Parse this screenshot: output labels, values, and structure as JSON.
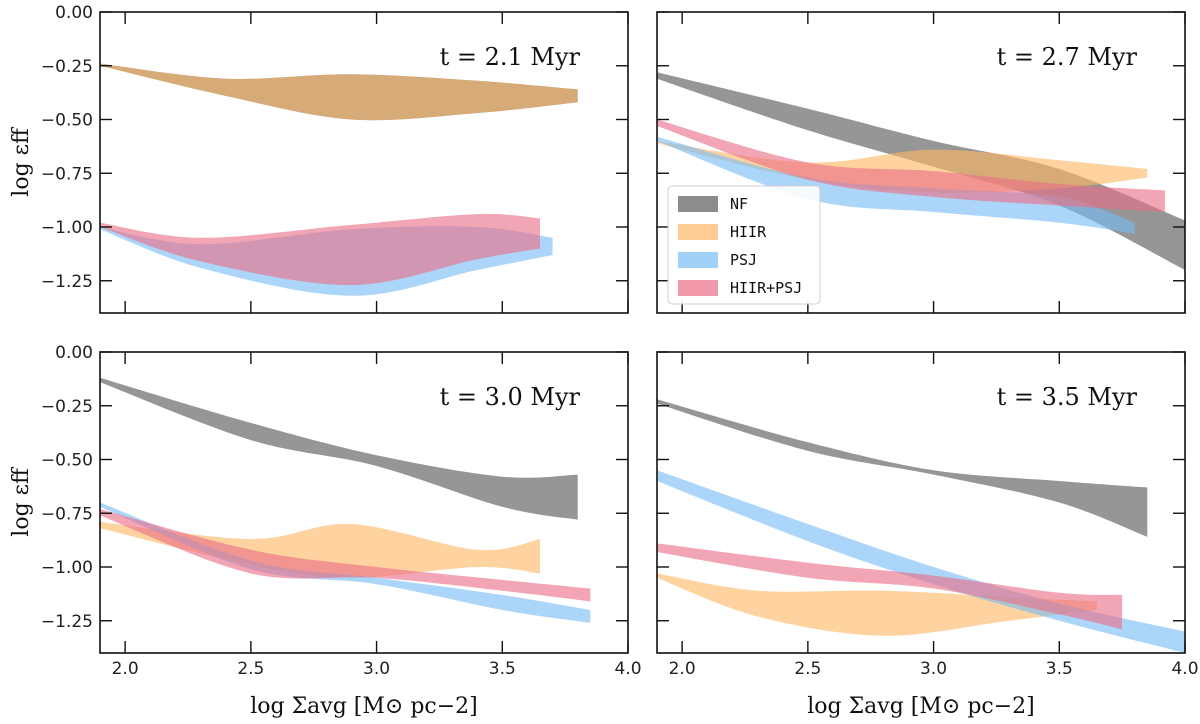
{
  "chart_data": {
    "type": "area",
    "x_axis_label": "log Σavg [M⊙ pc−2]",
    "y_axis_label": "log εff",
    "xlim": [
      1.9,
      4.0
    ],
    "ylim": [
      -1.4,
      0.0
    ],
    "xticks": [
      "2.0",
      "2.5",
      "3.0",
      "3.5",
      "4.0"
    ],
    "xtick_values": [
      2.0,
      2.5,
      3.0,
      3.5,
      4.0
    ],
    "yticks": [
      "0.00",
      "−0.25",
      "−0.50",
      "−0.75",
      "−1.00",
      "−1.25"
    ],
    "ytick_values": [
      0.0,
      -0.25,
      -0.5,
      -0.75,
      -1.0,
      -1.25
    ],
    "legend": {
      "placement": "inside top-right panel, lower-left",
      "entries": [
        {
          "label": "NF",
          "color": "#7f7f7f"
        },
        {
          "label": "HIIR",
          "color": "#ffb866"
        },
        {
          "label": "PSJ",
          "color": "#79bdf5"
        },
        {
          "label": "HIIR+PSJ",
          "color": "#ea6f88"
        }
      ]
    },
    "panels": [
      {
        "label": "t = 2.1 Myr",
        "series": [
          {
            "name": "NF",
            "x": [
              1.9,
              2.4,
              2.9,
              3.4,
              3.8
            ],
            "upper": [
              -0.24,
              -0.31,
              -0.29,
              -0.32,
              -0.36
            ],
            "lower": [
              -0.25,
              -0.39,
              -0.5,
              -0.47,
              -0.42
            ]
          },
          {
            "name": "HIIR",
            "x": [
              1.9,
              2.4,
              2.9,
              3.4,
              3.8
            ],
            "upper": [
              -0.24,
              -0.31,
              -0.29,
              -0.32,
              -0.36
            ],
            "lower": [
              -0.25,
              -0.39,
              -0.5,
              -0.47,
              -0.42
            ]
          },
          {
            "name": "PSJ",
            "x": [
              1.9,
              2.3,
              2.9,
              3.4,
              3.7
            ],
            "upper": [
              -1.0,
              -1.08,
              -1.01,
              -1.0,
              -1.05
            ],
            "lower": [
              -1.01,
              -1.19,
              -1.32,
              -1.2,
              -1.13
            ]
          },
          {
            "name": "HIIR+PSJ",
            "x": [
              1.9,
              2.3,
              2.9,
              3.4,
              3.65
            ],
            "upper": [
              -0.98,
              -1.05,
              -0.99,
              -0.94,
              -0.96
            ],
            "lower": [
              -1.0,
              -1.16,
              -1.27,
              -1.15,
              -1.1
            ]
          }
        ]
      },
      {
        "label": "t = 2.7 Myr",
        "series": [
          {
            "name": "NF",
            "x": [
              1.9,
              2.5,
              3.0,
              3.5,
              4.0
            ],
            "upper": [
              -0.28,
              -0.45,
              -0.6,
              -0.73,
              -0.97
            ],
            "lower": [
              -0.31,
              -0.55,
              -0.72,
              -0.9,
              -1.2
            ]
          },
          {
            "name": "HIIR",
            "x": [
              1.9,
              2.5,
              3.0,
              3.5,
              3.85
            ],
            "upper": [
              -0.6,
              -0.7,
              -0.64,
              -0.69,
              -0.73
            ],
            "lower": [
              -0.61,
              -0.78,
              -0.84,
              -0.82,
              -0.77
            ]
          },
          {
            "name": "PSJ",
            "x": [
              1.9,
              2.5,
              3.0,
              3.5,
              3.8
            ],
            "upper": [
              -0.58,
              -0.77,
              -0.82,
              -0.86,
              -0.98
            ],
            "lower": [
              -0.6,
              -0.87,
              -0.93,
              -0.98,
              -1.03
            ]
          },
          {
            "name": "HIIR+PSJ",
            "x": [
              1.9,
              2.5,
              3.0,
              3.5,
              3.92
            ],
            "upper": [
              -0.5,
              -0.7,
              -0.74,
              -0.8,
              -0.83
            ],
            "lower": [
              -0.53,
              -0.78,
              -0.86,
              -0.9,
              -0.93
            ]
          }
        ]
      },
      {
        "label": "t = 3.0 Myr",
        "series": [
          {
            "name": "NF",
            "x": [
              1.9,
              2.5,
              3.0,
              3.5,
              3.8
            ],
            "upper": [
              -0.12,
              -0.33,
              -0.48,
              -0.58,
              -0.57
            ],
            "lower": [
              -0.14,
              -0.41,
              -0.53,
              -0.72,
              -0.78
            ]
          },
          {
            "name": "HIIR",
            "x": [
              1.9,
              2.5,
              2.9,
              3.4,
              3.65
            ],
            "upper": [
              -0.79,
              -0.87,
              -0.8,
              -0.92,
              -0.87
            ],
            "lower": [
              -0.82,
              -0.99,
              -1.05,
              -1.0,
              -1.03
            ]
          },
          {
            "name": "PSJ",
            "x": [
              1.9,
              2.5,
              3.0,
              3.5,
              3.85
            ],
            "upper": [
              -0.7,
              -0.97,
              -1.05,
              -1.13,
              -1.2
            ],
            "lower": [
              -0.72,
              -1.01,
              -1.08,
              -1.2,
              -1.26
            ]
          },
          {
            "name": "HIIR+PSJ",
            "x": [
              1.9,
              2.5,
              3.0,
              3.5,
              3.85
            ],
            "upper": [
              -0.73,
              -0.92,
              -1.0,
              -1.06,
              -1.1
            ],
            "lower": [
              -0.76,
              -1.03,
              -1.05,
              -1.11,
              -1.16
            ]
          }
        ]
      },
      {
        "label": "t = 3.5 Myr",
        "series": [
          {
            "name": "NF",
            "x": [
              1.9,
              2.5,
              3.0,
              3.5,
              3.85
            ],
            "upper": [
              -0.22,
              -0.42,
              -0.55,
              -0.6,
              -0.63
            ],
            "lower": [
              -0.24,
              -0.46,
              -0.57,
              -0.7,
              -0.86
            ]
          },
          {
            "name": "HIIR",
            "x": [
              1.9,
              2.3,
              2.8,
              3.3,
              3.65
            ],
            "upper": [
              -1.03,
              -1.11,
              -1.11,
              -1.14,
              -1.16
            ],
            "lower": [
              -1.05,
              -1.23,
              -1.32,
              -1.25,
              -1.2
            ]
          },
          {
            "name": "PSJ",
            "x": [
              1.9,
              2.5,
              3.0,
              3.5,
              4.0
            ],
            "upper": [
              -0.55,
              -0.8,
              -1.0,
              -1.17,
              -1.3
            ],
            "lower": [
              -0.6,
              -0.88,
              -1.08,
              -1.25,
              -1.4
            ]
          },
          {
            "name": "HIIR+PSJ",
            "x": [
              1.9,
              2.5,
              3.0,
              3.5,
              3.75
            ],
            "upper": [
              -0.89,
              -0.98,
              -1.04,
              -1.12,
              -1.13
            ],
            "lower": [
              -0.93,
              -1.05,
              -1.1,
              -1.22,
              -1.29
            ]
          }
        ]
      }
    ]
  }
}
